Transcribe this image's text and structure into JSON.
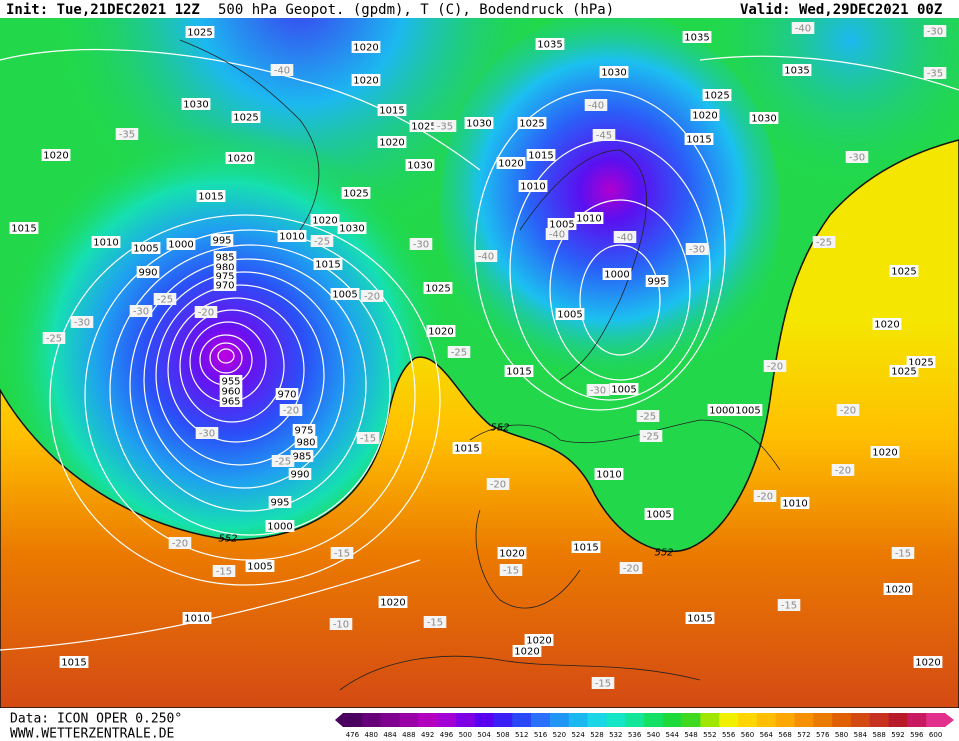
{
  "header": {
    "init": "Init: Tue,21DEC2021 12Z",
    "title": "500 hPa Geopot. (gpdm), T (C), Bodendruck (hPa)",
    "valid": "Valid: Wed,29DEC2021 00Z"
  },
  "footer": {
    "data_source": "Data: ICON OPER 0.250°",
    "website": "WWW.WETTERZENTRALE.DE"
  },
  "colorbar": {
    "levels": [
      476,
      480,
      484,
      488,
      492,
      496,
      500,
      504,
      508,
      512,
      516,
      520,
      524,
      528,
      532,
      536,
      540,
      544,
      548,
      552,
      556,
      560,
      564,
      568,
      572,
      576,
      580,
      584,
      588,
      592,
      596,
      600
    ],
    "colors": [
      "#4b0060",
      "#660078",
      "#80008f",
      "#9900a6",
      "#b300bf",
      "#a300d6",
      "#8000e6",
      "#5a00f0",
      "#3a20f5",
      "#2a48f8",
      "#2a70fa",
      "#1f95f5",
      "#1cb8f0",
      "#1ad6e6",
      "#16e6c8",
      "#14e699",
      "#14e066",
      "#1ed93a",
      "#3ed920",
      "#a0e600",
      "#f0f000",
      "#ffd600",
      "#ffbf00",
      "#ffa800",
      "#f59000",
      "#eb7a00",
      "#e06000",
      "#d44a14",
      "#c83020",
      "#b81a2a",
      "#c81a60",
      "#e0308c"
    ]
  },
  "map": {
    "pressure_labels": [
      1025,
      1020,
      1020,
      1035,
      1035,
      1030,
      1035,
      1030,
      1025,
      1015,
      1025,
      1030,
      1025,
      1025,
      1020,
      1015,
      1030,
      1020,
      1020,
      1020,
      1030,
      1015,
      1020,
      1010,
      1025,
      1015,
      1020,
      1030,
      1015,
      1010,
      1005,
      1000,
      995,
      985,
      980,
      975,
      970,
      990,
      1010,
      1015,
      1005,
      1025,
      1020,
      1005,
      1010,
      1000,
      995,
      1005,
      1025,
      1020,
      1025,
      1025,
      1015,
      1005,
      1005,
      1015,
      1010,
      1005,
      1010,
      1020,
      955,
      960,
      965,
      970,
      975,
      980,
      985,
      990,
      995,
      1000,
      1005,
      1020,
      1015,
      1020,
      1010,
      1015,
      1020,
      1020,
      1015,
      1020,
      1020,
      1000
    ],
    "temperature_labels": [
      -35,
      -40,
      -35,
      -30,
      -25,
      -40,
      -30,
      -25,
      -25,
      -30,
      -20,
      -20,
      -25,
      -40,
      -45,
      -40,
      -40,
      -30,
      -30,
      -25,
      -40,
      -30,
      -35,
      -30,
      -25,
      -25,
      -20,
      -30,
      -25,
      -15,
      -20,
      -20,
      -15,
      -15,
      -15,
      -20,
      -20,
      -20,
      -20,
      -20,
      -15,
      -15,
      -10,
      -15,
      -15
    ],
    "geopotential_labels": [
      552,
      552,
      552
    ]
  }
}
